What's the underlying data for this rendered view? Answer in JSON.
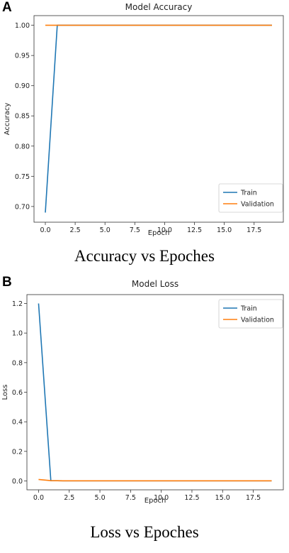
{
  "panels": [
    {
      "letter": "A",
      "caption": "Accuracy vs Epoches"
    },
    {
      "letter": "B",
      "caption": "Loss vs Epoches"
    }
  ],
  "chart_data": [
    {
      "type": "line",
      "title": "Model Accuracy",
      "xlabel": "Epoch",
      "ylabel": "Accuracy",
      "xlim": [
        -0.95,
        19.95
      ],
      "ylim": [
        0.674,
        1.016
      ],
      "xticks": [
        0.0,
        2.5,
        5.0,
        7.5,
        10.0,
        12.5,
        15.0,
        17.5
      ],
      "xtick_labels": [
        "0.0",
        "2.5",
        "5.0",
        "7.5",
        "10.0",
        "12.5",
        "15.0",
        "17.5"
      ],
      "yticks": [
        0.7,
        0.75,
        0.8,
        0.85,
        0.9,
        0.95,
        1.0
      ],
      "ytick_labels": [
        "0.70",
        "0.75",
        "0.80",
        "0.85",
        "0.90",
        "0.95",
        "1.00"
      ],
      "legend": "lower-right",
      "grid": false,
      "x": [
        0,
        1,
        2,
        3,
        4,
        5,
        6,
        7,
        8,
        9,
        10,
        11,
        12,
        13,
        14,
        15,
        16,
        17,
        18,
        19
      ],
      "series": [
        {
          "name": "Train",
          "color": "#1f77b4",
          "values": [
            0.69,
            1.0,
            1.0,
            1.0,
            1.0,
            1.0,
            1.0,
            1.0,
            1.0,
            1.0,
            1.0,
            1.0,
            1.0,
            1.0,
            1.0,
            1.0,
            1.0,
            1.0,
            1.0,
            1.0
          ]
        },
        {
          "name": "Validation",
          "color": "#ff7f0e",
          "values": [
            1.0,
            1.0,
            1.0,
            1.0,
            1.0,
            1.0,
            1.0,
            1.0,
            1.0,
            1.0,
            1.0,
            1.0,
            1.0,
            1.0,
            1.0,
            1.0,
            1.0,
            1.0,
            1.0,
            1.0
          ]
        }
      ]
    },
    {
      "type": "line",
      "title": "Model Loss",
      "xlabel": "Epoch",
      "ylabel": "Loss",
      "xlim": [
        -0.95,
        19.95
      ],
      "ylim": [
        -0.06,
        1.26
      ],
      "xticks": [
        0.0,
        2.5,
        5.0,
        7.5,
        10.0,
        12.5,
        15.0,
        17.5
      ],
      "xtick_labels": [
        "0.0",
        "2.5",
        "5.0",
        "7.5",
        "10.0",
        "12.5",
        "15.0",
        "17.5"
      ],
      "yticks": [
        0.0,
        0.2,
        0.4,
        0.6,
        0.8,
        1.0,
        1.2
      ],
      "ytick_labels": [
        "0.0",
        "0.2",
        "0.4",
        "0.6",
        "0.8",
        "1.0",
        "1.2"
      ],
      "legend": "upper-right",
      "grid": false,
      "x": [
        0,
        1,
        2,
        3,
        4,
        5,
        6,
        7,
        8,
        9,
        10,
        11,
        12,
        13,
        14,
        15,
        16,
        17,
        18,
        19
      ],
      "series": [
        {
          "name": "Train",
          "color": "#1f77b4",
          "values": [
            1.2,
            0.002,
            0.001,
            0.001,
            0.001,
            0.001,
            0.001,
            0.001,
            0.001,
            0.001,
            0.001,
            0.001,
            0.001,
            0.001,
            0.001,
            0.001,
            0.001,
            0.001,
            0.001,
            0.001
          ]
        },
        {
          "name": "Validation",
          "color": "#ff7f0e",
          "values": [
            0.01,
            0.002,
            0.001,
            0.001,
            0.001,
            0.001,
            0.001,
            0.001,
            0.001,
            0.001,
            0.001,
            0.001,
            0.001,
            0.001,
            0.001,
            0.001,
            0.001,
            0.001,
            0.001,
            0.001
          ]
        }
      ]
    }
  ]
}
